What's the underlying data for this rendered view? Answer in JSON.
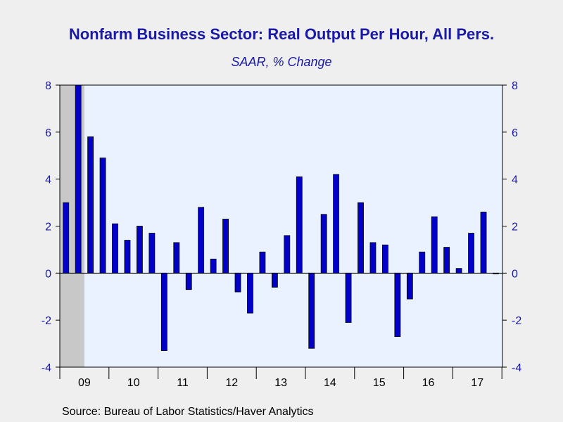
{
  "chart_data": {
    "type": "bar",
    "title": "Nonfarm Business Sector: Real Output Per Hour, All Pers.",
    "subtitle": "SAAR, % Change",
    "source": "Source:  Bureau of Labor Statistics/Haver Analytics",
    "xlabel": "",
    "ylabel": "",
    "ylim": [
      -4,
      8
    ],
    "yticks": [
      -4,
      -2,
      0,
      2,
      4,
      6,
      8
    ],
    "ytick_labels": [
      "-4",
      "-2",
      "0",
      "2",
      "4",
      "6",
      "8"
    ],
    "year_labels": [
      "09",
      "10",
      "11",
      "12",
      "13",
      "14",
      "15",
      "16",
      "17"
    ],
    "categories": [
      "2009 Q1",
      "2009 Q2",
      "2009 Q3",
      "2009 Q4",
      "2010 Q1",
      "2010 Q2",
      "2010 Q3",
      "2010 Q4",
      "2011 Q1",
      "2011 Q2",
      "2011 Q3",
      "2011 Q4",
      "2012 Q1",
      "2012 Q2",
      "2012 Q3",
      "2012 Q4",
      "2013 Q1",
      "2013 Q2",
      "2013 Q3",
      "2013 Q4",
      "2014 Q1",
      "2014 Q2",
      "2014 Q3",
      "2014 Q4",
      "2015 Q1",
      "2015 Q2",
      "2015 Q3",
      "2015 Q4",
      "2016 Q1",
      "2016 Q2",
      "2016 Q3",
      "2016 Q4",
      "2017 Q1",
      "2017 Q2",
      "2017 Q3",
      "2017 Q4"
    ],
    "values": [
      3.0,
      8.0,
      5.8,
      4.9,
      2.1,
      1.4,
      2.0,
      1.7,
      -3.3,
      1.3,
      -0.7,
      2.8,
      0.6,
      2.3,
      -0.8,
      -1.7,
      0.9,
      -0.6,
      1.6,
      4.1,
      -3.2,
      2.5,
      4.2,
      -2.1,
      3.0,
      1.3,
      1.2,
      -2.7,
      -1.1,
      0.9,
      2.4,
      1.1,
      0.2,
      1.7,
      2.6,
      0.0
    ],
    "recession_shading": {
      "start_index": 0,
      "end_index": 1
    },
    "grid": false,
    "colors": {
      "bar": "#0000c8",
      "bar_edge": "#000000",
      "plot_background": "#eaf2ff",
      "recession": "#c8c8c8",
      "axis_text": "#1a1aa6",
      "title": "#1a1aa6"
    }
  }
}
